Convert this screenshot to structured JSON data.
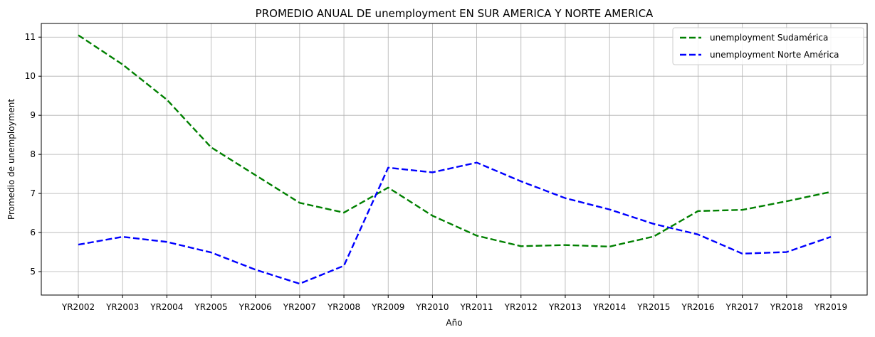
{
  "chart_data": {
    "type": "line",
    "title": "PROMEDIO ANUAL DE unemployment EN SUR AMERICA Y NORTE AMERICA",
    "xlabel": "Año",
    "ylabel": "Promedio de unemployment",
    "categories": [
      "YR2002",
      "YR2003",
      "YR2004",
      "YR2005",
      "YR2006",
      "YR2007",
      "YR2008",
      "YR2009",
      "YR2010",
      "YR2011",
      "YR2012",
      "YR2013",
      "YR2014",
      "YR2015",
      "YR2016",
      "YR2017",
      "YR2018",
      "YR2019"
    ],
    "ylim": [
      4.4,
      11.35
    ],
    "yticks": [
      5,
      6,
      7,
      8,
      9,
      10,
      11
    ],
    "grid": true,
    "legend_position": "top-right",
    "series": [
      {
        "name": "unemployment Sudamérica",
        "color": "#008000",
        "style": "dashed",
        "values": [
          11.05,
          10.3,
          9.4,
          8.18,
          7.47,
          6.76,
          6.51,
          7.15,
          6.43,
          5.92,
          5.65,
          5.68,
          5.64,
          5.9,
          6.55,
          6.58,
          6.8,
          7.04
        ]
      },
      {
        "name": "unemployment Norte América",
        "color": "#0000ff",
        "style": "dashed",
        "values": [
          5.69,
          5.89,
          5.76,
          5.49,
          5.05,
          4.69,
          5.15,
          7.66,
          7.54,
          7.79,
          7.31,
          6.88,
          6.59,
          6.22,
          5.95,
          5.46,
          5.5,
          5.89
        ]
      }
    ]
  }
}
